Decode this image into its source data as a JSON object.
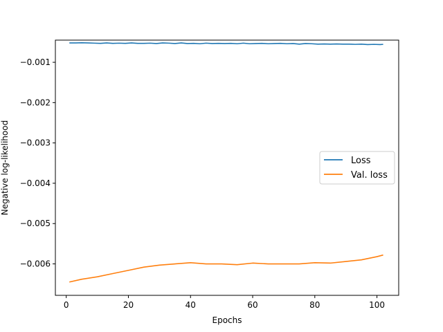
{
  "chart_data": {
    "type": "line",
    "title": "",
    "xlabel": "Epochs",
    "ylabel": "Negative log-likelihood",
    "xlim": [
      -3.5,
      107
    ],
    "ylim": [
      -0.00678,
      -0.00045
    ],
    "xticks": [
      0,
      20,
      40,
      60,
      80,
      100
    ],
    "xtick_labels": [
      "0",
      "20",
      "40",
      "60",
      "80",
      "100"
    ],
    "yticks": [
      -0.001,
      -0.002,
      -0.003,
      -0.004,
      -0.005,
      -0.006
    ],
    "ytick_labels": [
      "−0.001",
      "−0.002",
      "−0.003",
      "−0.004",
      "−0.005",
      "−0.006"
    ],
    "grid": false,
    "legend_position": "center-right",
    "series": [
      {
        "name": "Loss",
        "color": "#1f77b4",
        "x": [
          1,
          3,
          5,
          7,
          9,
          11,
          13,
          15,
          17,
          19,
          21,
          23,
          25,
          27,
          29,
          31,
          33,
          35,
          37,
          39,
          41,
          43,
          45,
          47,
          49,
          51,
          53,
          55,
          57,
          59,
          61,
          63,
          65,
          67,
          69,
          71,
          73,
          75,
          77,
          79,
          81,
          83,
          85,
          87,
          89,
          91,
          93,
          95,
          97,
          99,
          101,
          102
        ],
        "values": [
          -0.00052,
          -0.00052,
          -0.000515,
          -0.00052,
          -0.000525,
          -0.00053,
          -0.00052,
          -0.00053,
          -0.000525,
          -0.00053,
          -0.00052,
          -0.00053,
          -0.00053,
          -0.000525,
          -0.000535,
          -0.00052,
          -0.000525,
          -0.000535,
          -0.00052,
          -0.000535,
          -0.00053,
          -0.00054,
          -0.000525,
          -0.000535,
          -0.00053,
          -0.000535,
          -0.00053,
          -0.00054,
          -0.000525,
          -0.00054,
          -0.000535,
          -0.00053,
          -0.00054,
          -0.000535,
          -0.00053,
          -0.00054,
          -0.000535,
          -0.00055,
          -0.000535,
          -0.00054,
          -0.00055,
          -0.000545,
          -0.00055,
          -0.000545,
          -0.00055,
          -0.00055,
          -0.000555,
          -0.00055,
          -0.00056,
          -0.000555,
          -0.00056,
          -0.000555
        ]
      },
      {
        "name": "Val. loss",
        "color": "#ff7f0e",
        "x": [
          1,
          5,
          10,
          15,
          20,
          25,
          30,
          35,
          40,
          45,
          50,
          55,
          60,
          65,
          70,
          75,
          80,
          85,
          90,
          95,
          100,
          102
        ],
        "values": [
          -0.00645,
          -0.00638,
          -0.00632,
          -0.00624,
          -0.00616,
          -0.00608,
          -0.00603,
          -0.006,
          -0.00597,
          -0.006,
          -0.006,
          -0.00602,
          -0.00598,
          -0.006,
          -0.006,
          -0.006,
          -0.00597,
          -0.00598,
          -0.00594,
          -0.0059,
          -0.00582,
          -0.00578
        ]
      }
    ]
  }
}
